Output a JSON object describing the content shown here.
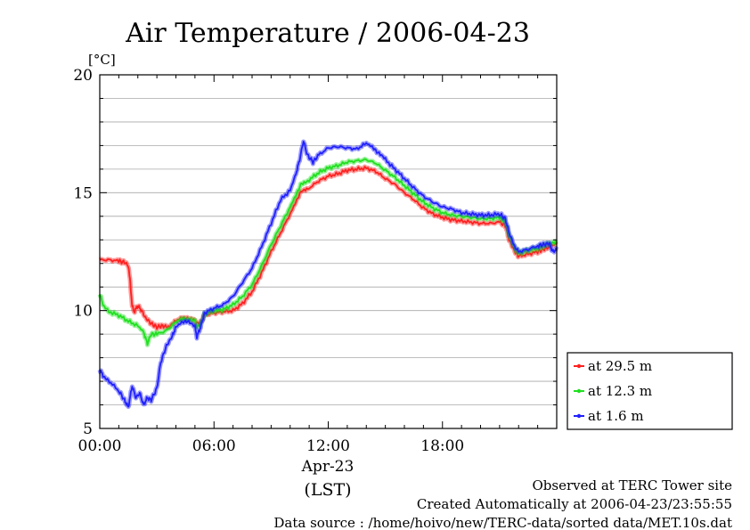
{
  "chart_data": {
    "type": "line",
    "title": "Air Temperature / 2006-04-23",
    "y_unit": "[°C]",
    "ylim": [
      5,
      20
    ],
    "y_ticks": [
      {
        "value": 5,
        "label": "5"
      },
      {
        "value": 10,
        "label": "10"
      },
      {
        "value": 15,
        "label": "15"
      },
      {
        "value": 20,
        "label": "20"
      }
    ],
    "y_minor_step": 1,
    "xlim": [
      0,
      24
    ],
    "x_ticks": [
      {
        "value": 0,
        "label": "00:00"
      },
      {
        "value": 6,
        "label": "06:00"
      },
      {
        "value": 12,
        "label": "12:00"
      },
      {
        "value": 18,
        "label": "18:00"
      }
    ],
    "x_date_label": "Apr-23",
    "x_label": "(LST)",
    "grid": "horizontal",
    "legend_position": "right",
    "series": [
      {
        "name": "at 29.5 m",
        "color": "#ff2020",
        "points": [
          [
            0,
            12.15
          ],
          [
            0.5,
            12.15
          ],
          [
            1,
            12.1
          ],
          [
            1.3,
            12.05
          ],
          [
            1.5,
            11.9
          ],
          [
            1.6,
            11.2
          ],
          [
            1.7,
            10.2
          ],
          [
            1.8,
            9.95
          ],
          [
            2,
            10.2
          ],
          [
            2.2,
            10.0
          ],
          [
            2.4,
            9.7
          ],
          [
            2.7,
            9.45
          ],
          [
            3,
            9.3
          ],
          [
            3.3,
            9.35
          ],
          [
            3.6,
            9.3
          ],
          [
            4,
            9.55
          ],
          [
            4.3,
            9.7
          ],
          [
            4.6,
            9.65
          ],
          [
            5,
            9.6
          ],
          [
            5.1,
            9.45
          ],
          [
            5.3,
            9.5
          ],
          [
            5.5,
            9.8
          ],
          [
            6,
            9.9
          ],
          [
            6.5,
            9.95
          ],
          [
            7,
            10.0
          ],
          [
            7.5,
            10.3
          ],
          [
            8,
            10.8
          ],
          [
            8.5,
            11.6
          ],
          [
            9,
            12.5
          ],
          [
            9.5,
            13.3
          ],
          [
            10,
            14.1
          ],
          [
            10.3,
            14.6
          ],
          [
            10.6,
            15.1
          ],
          [
            11,
            15.2
          ],
          [
            11.5,
            15.5
          ],
          [
            12,
            15.7
          ],
          [
            12.5,
            15.8
          ],
          [
            13,
            15.95
          ],
          [
            13.5,
            16.0
          ],
          [
            14,
            16.05
          ],
          [
            14.5,
            15.9
          ],
          [
            15,
            15.6
          ],
          [
            15.5,
            15.35
          ],
          [
            16,
            15.0
          ],
          [
            16.5,
            14.7
          ],
          [
            17,
            14.35
          ],
          [
            17.5,
            14.1
          ],
          [
            18,
            13.95
          ],
          [
            18.5,
            13.85
          ],
          [
            19,
            13.8
          ],
          [
            19.5,
            13.75
          ],
          [
            20,
            13.7
          ],
          [
            20.5,
            13.7
          ],
          [
            21,
            13.75
          ],
          [
            21.3,
            13.6
          ],
          [
            21.5,
            13.0
          ],
          [
            21.8,
            12.5
          ],
          [
            22,
            12.3
          ],
          [
            22.5,
            12.4
          ],
          [
            23,
            12.5
          ],
          [
            23.3,
            12.6
          ],
          [
            23.6,
            12.7
          ],
          [
            24,
            12.8
          ]
        ]
      },
      {
        "name": "at 12.3 m",
        "color": "#20e020",
        "points": [
          [
            0,
            10.7
          ],
          [
            0.2,
            10.2
          ],
          [
            0.5,
            9.95
          ],
          [
            1,
            9.8
          ],
          [
            1.5,
            9.55
          ],
          [
            2,
            9.35
          ],
          [
            2.3,
            9.1
          ],
          [
            2.5,
            8.6
          ],
          [
            2.7,
            9.0
          ],
          [
            3,
            9.0
          ],
          [
            3.5,
            9.15
          ],
          [
            4,
            9.5
          ],
          [
            4.3,
            9.65
          ],
          [
            4.6,
            9.6
          ],
          [
            5,
            9.55
          ],
          [
            5.1,
            9.3
          ],
          [
            5.3,
            9.45
          ],
          [
            5.5,
            9.85
          ],
          [
            6,
            10.0
          ],
          [
            6.5,
            10.05
          ],
          [
            7,
            10.25
          ],
          [
            7.5,
            10.6
          ],
          [
            8,
            11.1
          ],
          [
            8.5,
            11.9
          ],
          [
            9,
            12.8
          ],
          [
            9.5,
            13.6
          ],
          [
            10,
            14.4
          ],
          [
            10.3,
            14.9
          ],
          [
            10.6,
            15.4
          ],
          [
            11,
            15.55
          ],
          [
            11.5,
            15.85
          ],
          [
            12,
            16.05
          ],
          [
            12.5,
            16.15
          ],
          [
            13,
            16.3
          ],
          [
            13.5,
            16.35
          ],
          [
            14,
            16.4
          ],
          [
            14.5,
            16.25
          ],
          [
            15,
            15.95
          ],
          [
            15.5,
            15.65
          ],
          [
            16,
            15.3
          ],
          [
            16.5,
            14.95
          ],
          [
            17,
            14.6
          ],
          [
            17.5,
            14.35
          ],
          [
            18,
            14.15
          ],
          [
            18.5,
            14.05
          ],
          [
            19,
            14.0
          ],
          [
            19.5,
            13.95
          ],
          [
            20,
            13.9
          ],
          [
            20.5,
            13.9
          ],
          [
            21,
            13.95
          ],
          [
            21.3,
            13.8
          ],
          [
            21.5,
            13.2
          ],
          [
            21.8,
            12.65
          ],
          [
            22,
            12.45
          ],
          [
            22.5,
            12.55
          ],
          [
            23,
            12.65
          ],
          [
            23.3,
            12.75
          ],
          [
            23.6,
            12.85
          ],
          [
            24,
            12.9
          ]
        ]
      },
      {
        "name": "at 1.6 m",
        "color": "#2020ff",
        "points": [
          [
            0,
            7.5
          ],
          [
            0.2,
            7.2
          ],
          [
            0.5,
            7.0
          ],
          [
            1,
            6.6
          ],
          [
            1.3,
            6.2
          ],
          [
            1.5,
            5.9
          ],
          [
            1.7,
            6.8
          ],
          [
            1.9,
            6.3
          ],
          [
            2.1,
            6.5
          ],
          [
            2.3,
            6.0
          ],
          [
            2.5,
            6.3
          ],
          [
            2.7,
            6.2
          ],
          [
            3,
            6.7
          ],
          [
            3.2,
            7.8
          ],
          [
            3.5,
            8.5
          ],
          [
            3.8,
            8.9
          ],
          [
            4,
            9.3
          ],
          [
            4.3,
            9.5
          ],
          [
            4.6,
            9.55
          ],
          [
            5,
            9.3
          ],
          [
            5.1,
            8.9
          ],
          [
            5.3,
            9.3
          ],
          [
            5.5,
            9.9
          ],
          [
            6,
            10.1
          ],
          [
            6.5,
            10.25
          ],
          [
            7,
            10.6
          ],
          [
            7.5,
            11.2
          ],
          [
            8,
            11.8
          ],
          [
            8.5,
            12.7
          ],
          [
            9,
            13.7
          ],
          [
            9.5,
            14.7
          ],
          [
            10,
            15.1
          ],
          [
            10.3,
            15.8
          ],
          [
            10.5,
            16.4
          ],
          [
            10.7,
            17.2
          ],
          [
            10.9,
            16.6
          ],
          [
            11.2,
            16.3
          ],
          [
            11.5,
            16.6
          ],
          [
            12,
            16.9
          ],
          [
            12.5,
            16.95
          ],
          [
            13,
            16.9
          ],
          [
            13.5,
            16.85
          ],
          [
            14,
            17.1
          ],
          [
            14.3,
            16.95
          ],
          [
            14.6,
            16.7
          ],
          [
            15,
            16.4
          ],
          [
            15.5,
            16.0
          ],
          [
            16,
            15.6
          ],
          [
            16.5,
            15.2
          ],
          [
            17,
            14.85
          ],
          [
            17.5,
            14.6
          ],
          [
            18,
            14.4
          ],
          [
            18.5,
            14.3
          ],
          [
            19,
            14.15
          ],
          [
            19.5,
            14.1
          ],
          [
            20,
            14.05
          ],
          [
            20.5,
            14.05
          ],
          [
            21,
            14.1
          ],
          [
            21.3,
            13.9
          ],
          [
            21.5,
            13.3
          ],
          [
            21.8,
            12.7
          ],
          [
            22,
            12.5
          ],
          [
            22.5,
            12.6
          ],
          [
            23,
            12.75
          ],
          [
            23.3,
            12.8
          ],
          [
            23.6,
            12.85
          ],
          [
            23.8,
            12.5
          ],
          [
            24,
            12.6
          ]
        ]
      }
    ]
  },
  "footer": {
    "line1": "Observed at TERC Tower site",
    "line2": "Created Automatically at 2006-04-23/23:55:55",
    "line3": "Data source : /home/hoivo/new/TERC-data/sorted  data/MET.10s.dat"
  }
}
